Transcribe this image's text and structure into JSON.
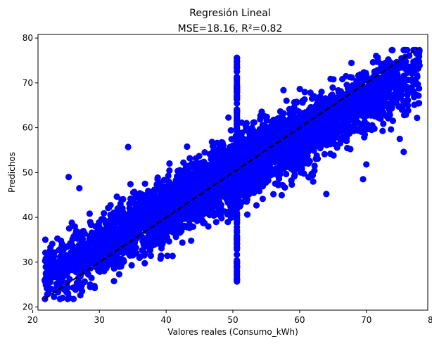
{
  "chart_data": {
    "type": "scatter",
    "title": "Regresión Lineal",
    "subtitle": "MSE=18.16, R²=0.82",
    "xlabel": "Valores reales (Consumo_kWh)",
    "ylabel": "Predichos",
    "xlim": [
      20.8,
      79.2
    ],
    "ylim": [
      19.3,
      80.8
    ],
    "xticks": [
      20,
      30,
      40,
      50,
      60,
      70,
      80
    ],
    "yticks": [
      20,
      30,
      40,
      50,
      60,
      70,
      80
    ],
    "grid": false,
    "point_color": "#0000ff",
    "line_color": "#000000",
    "reference_line": {
      "style": "dashed",
      "x": [
        21.8,
        77.7
      ],
      "y": [
        21.8,
        77.7
      ]
    },
    "main_cloud": {
      "x_range": [
        21.8,
        78.0
      ],
      "fit": {
        "slope": 0.82,
        "intercept": 9.0
      },
      "spread": 4.2,
      "approx_points": 4500
    },
    "vertical_cluster": {
      "x": 50.6,
      "y_range": [
        25.7,
        75.6
      ],
      "approx_points": 180
    },
    "notable_points": [
      {
        "x": 21.9,
        "y": 35.0
      },
      {
        "x": 25.4,
        "y": 49.0
      },
      {
        "x": 27.0,
        "y": 46.5
      },
      {
        "x": 34.3,
        "y": 55.7
      },
      {
        "x": 49.7,
        "y": 59.4
      },
      {
        "x": 50.6,
        "y": 75.6
      },
      {
        "x": 50.6,
        "y": 25.7
      },
      {
        "x": 64.0,
        "y": 45.2
      },
      {
        "x": 69.5,
        "y": 48.5
      },
      {
        "x": 70.0,
        "y": 51.8
      },
      {
        "x": 71.0,
        "y": 74.6
      },
      {
        "x": 75.6,
        "y": 54.6
      },
      {
        "x": 75.0,
        "y": 57.5
      },
      {
        "x": 77.6,
        "y": 62.2
      },
      {
        "x": 23.8,
        "y": 23.3
      },
      {
        "x": 25.3,
        "y": 23.0
      }
    ]
  }
}
